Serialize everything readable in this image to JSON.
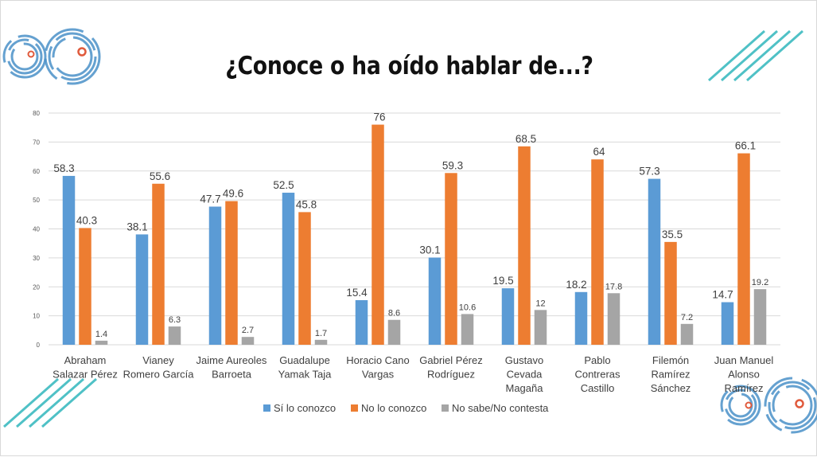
{
  "title": "¿Conoce o ha oído hablar de...?",
  "chart_data": {
    "type": "bar",
    "title": "¿Conoce o ha oído hablar de...?",
    "categories": [
      [
        "Abraham",
        "Salazar Pérez"
      ],
      [
        "Vianey",
        "Romero García"
      ],
      [
        "Jaime Aureoles",
        "Barroeta"
      ],
      [
        "Guadalupe",
        "Yamak Taja"
      ],
      [
        "Horacio Cano",
        "Vargas"
      ],
      [
        "Gabriel Pérez",
        "Rodríguez"
      ],
      [
        "Gustavo",
        "Cevada",
        "Magaña"
      ],
      [
        "Pablo",
        "Contreras",
        "Castillo"
      ],
      [
        "Filemón",
        "Ramírez",
        "Sánchez"
      ],
      [
        "Juan Manuel",
        "Alonso",
        "Ramírez"
      ]
    ],
    "series": [
      {
        "name": "Sí lo conozco",
        "color": "#5b9bd5",
        "values": [
          58.3,
          38.1,
          47.7,
          52.5,
          15.4,
          30.1,
          19.5,
          18.2,
          57.3,
          14.7
        ]
      },
      {
        "name": "No lo conozco",
        "color": "#ed7d31",
        "values": [
          40.3,
          55.6,
          49.6,
          45.8,
          76,
          59.3,
          68.5,
          64,
          35.5,
          66.1
        ]
      },
      {
        "name": "No sabe/No contesta",
        "color": "#a5a5a5",
        "values": [
          1.4,
          6.3,
          2.7,
          1.7,
          8.6,
          10.6,
          12,
          17.8,
          7.2,
          19.2
        ]
      }
    ],
    "ylim": [
      0,
      80
    ],
    "yticks": [
      0,
      10,
      20,
      30,
      40,
      50,
      60,
      70,
      80
    ],
    "grid": true,
    "legend": "bottom",
    "xlabel": "",
    "ylabel": ""
  },
  "decor": {
    "circle_color": "#4a90c8",
    "dot_color": "#e05a3c",
    "stripe_color": "#4fc1c6"
  }
}
